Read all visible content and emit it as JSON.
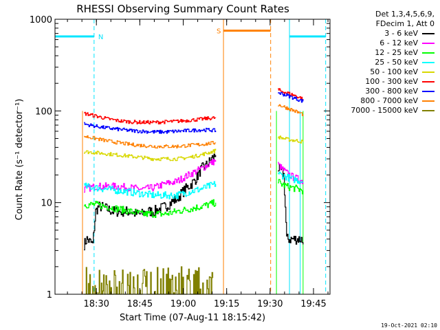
{
  "chart_data": {
    "type": "line",
    "title": "RHESSI Observing Summary Count Rates",
    "xlabel": "Start Time (07-Aug-11 18:15:42)",
    "ylabel": "Count Rate (s⁻¹ detector⁻¹)",
    "yscale": "log",
    "ylim": [
      1,
      1000
    ],
    "y_ticks": [
      1,
      10,
      100,
      1000
    ],
    "y_tick_labels": [
      "1",
      "10",
      "100",
      "1000"
    ],
    "xlim_minutes_after_18_15_42": [
      0,
      95
    ],
    "x_ticks": [
      {
        "minutes": 14.3,
        "label": "18:30"
      },
      {
        "minutes": 29.3,
        "label": "18:45"
      },
      {
        "minutes": 44.3,
        "label": "19:00"
      },
      {
        "minutes": 59.3,
        "label": "19:15"
      },
      {
        "minutes": 74.3,
        "label": "19:30"
      },
      {
        "minutes": 89.3,
        "label": "19:45"
      }
    ],
    "legend_header": [
      "Det 1,3,4,5,6,9,",
      "FDecim 1, Att 0"
    ],
    "series": [
      {
        "name": "3 - 6 keV",
        "color": "#000000",
        "segments": [
          {
            "t": [
              10,
              11,
              13,
              14,
              15,
              16,
              18,
              20,
              22,
              24,
              26,
              28,
              30,
              32,
              34,
              36,
              38,
              40,
              42,
              44,
              46,
              48,
              49,
              50,
              51,
              52,
              53,
              54,
              55.5
            ],
            "v": [
              3.5,
              4,
              3.5,
              8,
              9,
              9,
              8.5,
              8,
              8,
              8,
              8,
              7.5,
              7.5,
              8,
              8,
              8.5,
              9,
              10,
              11,
              13,
              15,
              17,
              19,
              22,
              24,
              25,
              27,
              30,
              33
            ]
          },
          {
            "t": [
              77,
              78,
              79,
              80,
              81,
              82,
              83,
              84,
              85,
              85.7
            ],
            "v": [
              24,
              22,
              20,
              4,
              4,
              4,
              4,
              4,
              4,
              3.5
            ]
          }
        ]
      },
      {
        "name": "6 - 12 keV",
        "color": "#ff00ff",
        "segments": [
          {
            "t": [
              10,
              14,
              18,
              22,
              26,
              30,
              34,
              38,
              42,
              46,
              50,
              53,
              55.5
            ],
            "v": [
              14,
              15,
              15,
              15,
              14.5,
              14,
              14.5,
              16,
              17,
              20,
              23,
              26,
              29
            ]
          },
          {
            "t": [
              77,
              78,
              80,
              82,
              84,
              85.7
            ],
            "v": [
              26,
              24,
              21,
              19,
              18,
              17
            ]
          }
        ]
      },
      {
        "name": "12 - 25 keV",
        "color": "#00ff00",
        "segments": [
          {
            "t": [
              10,
              14,
              18,
              22,
              26,
              30,
              34,
              38,
              42,
              46,
              50,
              53,
              55.5
            ],
            "v": [
              9.5,
              9.5,
              9,
              8.5,
              8,
              7.5,
              7.5,
              7.5,
              8,
              8.5,
              9,
              9.5,
              10
            ]
          },
          {
            "t": [
              77,
              78,
              80,
              82,
              84,
              85.7
            ],
            "v": [
              17,
              16,
              15,
              14.5,
              14,
              13.5
            ]
          }
        ]
      },
      {
        "name": "25 - 50 keV",
        "color": "#00ffff",
        "segments": [
          {
            "t": [
              10,
              14,
              18,
              22,
              26,
              30,
              34,
              38,
              42,
              46,
              50,
              53,
              55.5
            ],
            "v": [
              15,
              14.5,
              14,
              13.5,
              13,
              12.5,
              12,
              12,
              12,
              13,
              14,
              15,
              16
            ]
          },
          {
            "t": [
              77,
              78,
              80,
              82,
              84,
              85.7
            ],
            "v": [
              21,
              20,
              19,
              18,
              17.5,
              17
            ]
          }
        ]
      },
      {
        "name": "50 - 100 keV",
        "color": "#d8d800",
        "segments": [
          {
            "t": [
              10,
              14,
              18,
              22,
              26,
              30,
              34,
              38,
              42,
              46,
              50,
              53,
              55.5
            ],
            "v": [
              36,
              35,
              34,
              33,
              32,
              31,
              30,
              30,
              30,
              31,
              33,
              35,
              37
            ]
          },
          {
            "t": [
              77,
              78,
              80,
              82,
              84,
              85.7
            ],
            "v": [
              52,
              51,
              49,
              48,
              47,
              46
            ]
          }
        ]
      },
      {
        "name": "100 - 300 keV",
        "color": "#ff0000",
        "segments": [
          {
            "t": [
              10,
              14,
              18,
              22,
              26,
              30,
              34,
              38,
              42,
              46,
              50,
              53,
              55.5
            ],
            "v": [
              94,
              88,
              82,
              78,
              76,
              75,
              75,
              76,
              77,
              79,
              81,
              83,
              84
            ]
          },
          {
            "t": [
              77,
              78,
              80,
              82,
              84,
              85.7
            ],
            "v": [
              170,
              165,
              158,
              150,
              142,
              135
            ]
          }
        ]
      },
      {
        "name": "300 - 800 keV",
        "color": "#0000ff",
        "segments": [
          {
            "t": [
              10,
              14,
              18,
              22,
              26,
              30,
              34,
              38,
              42,
              46,
              50,
              53,
              55.5
            ],
            "v": [
              72,
              68,
              65,
              63,
              61,
              60,
              59,
              59,
              60,
              61,
              62,
              62,
              61
            ]
          },
          {
            "t": [
              77,
              78,
              80,
              82,
              84,
              85.7
            ],
            "v": [
              158,
              155,
              148,
              140,
              133,
              127
            ]
          }
        ]
      },
      {
        "name": "800 - 7000 keV",
        "color": "#ff8000",
        "segments": [
          {
            "t": [
              10,
              14,
              18,
              22,
              26,
              30,
              34,
              38,
              42,
              46,
              50,
              53,
              55.5
            ],
            "v": [
              53,
              50,
              47,
              45,
              43,
              42,
              41,
              41,
              41,
              42,
              43,
              44,
              45
            ]
          },
          {
            "t": [
              77,
              78,
              80,
              82,
              84,
              85.7
            ],
            "v": [
              117,
              114,
              108,
              102,
              96,
              92
            ]
          }
        ]
      },
      {
        "name": "7000 - 15000 keV",
        "color": "#808000",
        "segments": [
          {
            "t": [
              10,
              11,
              12,
              13,
              14,
              15,
              16,
              17,
              45,
              47,
              49,
              51,
              53,
              54.5
            ],
            "v": [
              2,
              1.4,
              2,
              1.3,
              2,
              1.5,
              1.3,
              1.2,
              2,
              1.3,
              2,
              1.4,
              2,
              1.5
            ]
          }
        ]
      }
    ],
    "annotations": [
      {
        "label": "N",
        "color": "#00e5ff",
        "type": "night",
        "start": 0,
        "end": 13.5,
        "level": 650
      },
      {
        "label": "",
        "color": "#00e5ff",
        "type": "night",
        "start": 81,
        "end": 93.5,
        "level": 650
      },
      {
        "label": "S",
        "color": "#ff8000",
        "type": "saa",
        "start": 58.2,
        "end": 74.5,
        "level": 750
      }
    ],
    "night_boundaries_solid": [
      0,
      81
    ],
    "night_boundaries_dashed": [
      13.5,
      93.5
    ],
    "saa_boundaries_solid": [
      58.2
    ],
    "saa_boundaries_dashed": [
      74.5
    ],
    "extra_vertical_lines": [
      {
        "t": 9.5,
        "color": "#ff8000"
      },
      {
        "t": 76.5,
        "color": "#00ff00"
      },
      {
        "t": 84.7,
        "color": "#00e5ff"
      },
      {
        "t": 85.7,
        "color": "#00ff00"
      }
    ]
  },
  "footer": "19-Oct-2021 02:10"
}
